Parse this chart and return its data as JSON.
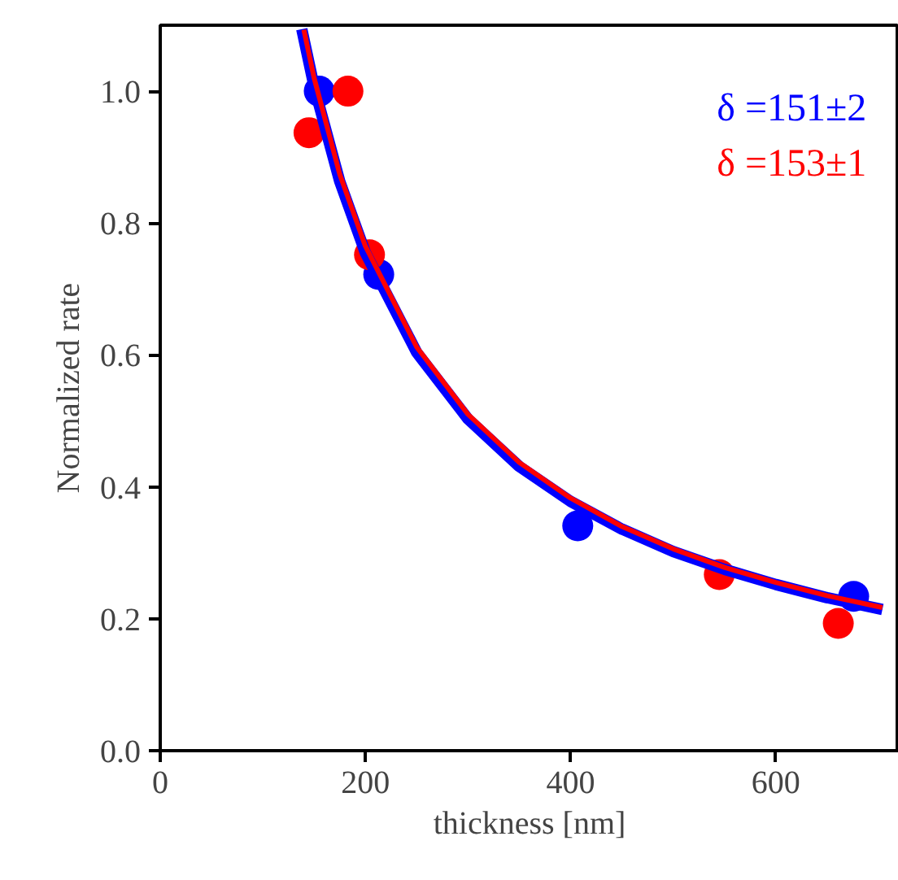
{
  "chart_data": {
    "type": "scatter",
    "xlabel": "thickness [nm]",
    "ylabel": "Normalized rate",
    "xlim": [
      0,
      720
    ],
    "ylim": [
      0,
      1.1
    ],
    "xticks": [
      0,
      200,
      400,
      600
    ],
    "yticks": [
      {
        "value": 0,
        "label": "0.0"
      },
      {
        "value": 0.2,
        "label": "0.2"
      },
      {
        "value": 0.4,
        "label": "0.4"
      },
      {
        "value": 0.6,
        "label": "0.6"
      },
      {
        "value": 0.8,
        "label": "0.8"
      },
      {
        "value": 1,
        "label": "1.0"
      }
    ],
    "grid": false,
    "series": [
      {
        "marker": "circle",
        "color": "#0000ff",
        "x": [
          155,
          213,
          407,
          676
        ],
        "values": [
          1.0,
          0.722,
          0.341,
          0.234
        ]
      },
      {
        "marker": "circle",
        "color": "#ff0000",
        "x": [
          145,
          183,
          204,
          545,
          661
        ],
        "values": [
          0.937,
          1.0,
          0.752,
          0.267,
          0.193
        ]
      },
      {
        "type": "line",
        "color": "#0000ff",
        "x": [
          138,
          150,
          175,
          200,
          250,
          300,
          350,
          400,
          450,
          500,
          550,
          600,
          650,
          704
        ],
        "values": [
          1.094,
          1.007,
          0.863,
          0.755,
          0.604,
          0.503,
          0.431,
          0.378,
          0.336,
          0.302,
          0.275,
          0.252,
          0.232,
          0.214
        ]
      },
      {
        "type": "line",
        "color": "#ff0000",
        "x": [
          140,
          150,
          175,
          200,
          250,
          300,
          350,
          400,
          450,
          500,
          550,
          600,
          650,
          704
        ],
        "values": [
          1.093,
          1.02,
          0.874,
          0.765,
          0.612,
          0.51,
          0.437,
          0.383,
          0.34,
          0.306,
          0.278,
          0.255,
          0.235,
          0.217
        ]
      }
    ],
    "annotations": [
      "δ =151±2",
      "δ =153±1"
    ]
  }
}
